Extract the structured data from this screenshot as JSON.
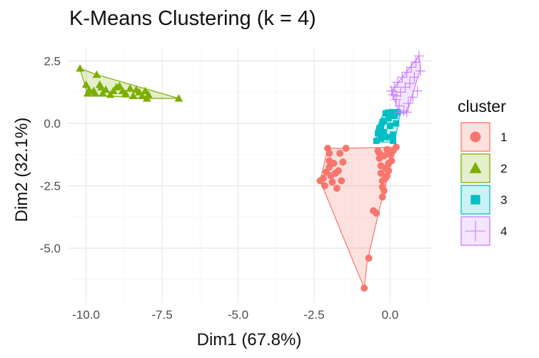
{
  "chart_data": {
    "type": "scatter",
    "title": "K-Means Clustering (k = 4)",
    "xlabel": "Dim1 (67.8%)",
    "ylabel": "Dim2 (32.1%)",
    "xlim": [
      -10.6,
      1.4
    ],
    "ylim": [
      -7.2,
      3.0
    ],
    "x_ticks": [
      -10.0,
      -7.5,
      -5.0,
      -2.5,
      0.0
    ],
    "x_tick_labels": [
      "-10.0",
      "-7.5",
      "-5.0",
      "-2.5",
      "0.0"
    ],
    "y_ticks": [
      2.5,
      0.0,
      -2.5,
      -5.0
    ],
    "y_tick_labels": [
      "2.5",
      "0.0",
      "-2.5",
      "-5.0"
    ],
    "grid": true,
    "legend": {
      "title": "cluster",
      "placement": "right",
      "entries": [
        "1",
        "2",
        "3",
        "4"
      ]
    },
    "series": [
      {
        "name": "1",
        "shape": "circle",
        "color": "#F8766D",
        "fill": "rgba(248,118,109,0.22)",
        "hull": [
          [
            -2.3,
            -2.3
          ],
          [
            -2.05,
            -1.0
          ],
          [
            -1.45,
            -1.0
          ],
          [
            0.2,
            -0.95
          ],
          [
            -0.25,
            -2.95
          ],
          [
            -0.75,
            -5.5
          ],
          [
            -0.85,
            -6.6
          ]
        ],
        "points": [
          [
            -2.3,
            -2.3
          ],
          [
            -2.2,
            -2.2
          ],
          [
            -2.15,
            -2.5
          ],
          [
            -2.1,
            -1.95
          ],
          [
            -2.05,
            -1.0
          ],
          [
            -2.0,
            -1.2
          ],
          [
            -2.0,
            -1.5
          ],
          [
            -2.0,
            -1.75
          ],
          [
            -1.95,
            -2.1
          ],
          [
            -1.9,
            -2.35
          ],
          [
            -1.85,
            -1.6
          ],
          [
            -1.8,
            -2.0
          ],
          [
            -1.75,
            -2.6
          ],
          [
            -1.7,
            -1.9
          ],
          [
            -1.65,
            -1.2
          ],
          [
            -1.6,
            -2.3
          ],
          [
            -1.55,
            -1.55
          ],
          [
            -1.45,
            -1.0
          ],
          [
            -0.85,
            -6.6
          ],
          [
            -0.7,
            -5.4
          ],
          [
            -0.55,
            -3.5
          ],
          [
            -0.45,
            -3.6
          ],
          [
            -0.4,
            -1.1
          ],
          [
            -0.35,
            -1.4
          ],
          [
            -0.3,
            -1.7
          ],
          [
            -0.3,
            -2.0
          ],
          [
            -0.25,
            -2.3
          ],
          [
            -0.25,
            -2.55
          ],
          [
            -0.25,
            -2.95
          ],
          [
            -0.2,
            -1.3
          ],
          [
            -0.15,
            -1.8
          ],
          [
            -0.1,
            -2.1
          ],
          [
            -0.1,
            -1.05
          ],
          [
            -0.05,
            -1.6
          ],
          [
            0.0,
            -1.25
          ],
          [
            0.05,
            -1.5
          ],
          [
            0.1,
            -1.1
          ],
          [
            0.2,
            -0.95
          ],
          [
            -0.35,
            -1.2
          ],
          [
            -0.2,
            -2.7
          ],
          [
            -0.15,
            -2.2
          ],
          [
            -0.05,
            -1.9
          ]
        ]
      },
      {
        "name": "2",
        "shape": "triangle",
        "color": "#7CAE00",
        "fill": "rgba(124,174,0,0.20)",
        "hull": [
          [
            -10.2,
            2.2
          ],
          [
            -9.65,
            1.95
          ],
          [
            -6.95,
            1.0
          ],
          [
            -8.0,
            1.0
          ],
          [
            -9.95,
            1.15
          ]
        ],
        "points": [
          [
            -10.2,
            2.2
          ],
          [
            -10.0,
            1.55
          ],
          [
            -9.95,
            1.2
          ],
          [
            -9.9,
            1.35
          ],
          [
            -9.75,
            1.3
          ],
          [
            -9.7,
            1.2
          ],
          [
            -9.65,
            1.95
          ],
          [
            -9.55,
            1.55
          ],
          [
            -9.5,
            1.45
          ],
          [
            -9.45,
            1.2
          ],
          [
            -9.35,
            1.35
          ],
          [
            -9.2,
            1.15
          ],
          [
            -9.1,
            1.3
          ],
          [
            -9.0,
            1.45
          ],
          [
            -8.9,
            1.5
          ],
          [
            -8.8,
            1.3
          ],
          [
            -8.7,
            1.2
          ],
          [
            -8.55,
            1.4
          ],
          [
            -8.45,
            1.1
          ],
          [
            -8.35,
            1.35
          ],
          [
            -8.25,
            1.25
          ],
          [
            -8.15,
            1.1
          ],
          [
            -8.05,
            1.3
          ],
          [
            -8.0,
            1.0
          ],
          [
            -7.95,
            1.15
          ],
          [
            -6.95,
            1.0
          ]
        ]
      },
      {
        "name": "3",
        "shape": "square",
        "color": "#00BFC4",
        "fill": "rgba(0,191,196,0.20)",
        "hull": [
          [
            -0.15,
            0.55
          ],
          [
            0.35,
            0.5
          ],
          [
            0.25,
            -0.1
          ],
          [
            0.15,
            -0.75
          ],
          [
            -0.45,
            -0.75
          ],
          [
            -0.45,
            -0.2
          ]
        ],
        "points": [
          [
            -0.45,
            -0.7
          ],
          [
            -0.4,
            -0.4
          ],
          [
            -0.35,
            -0.2
          ],
          [
            -0.3,
            -0.6
          ],
          [
            -0.25,
            0.05
          ],
          [
            -0.2,
            -0.35
          ],
          [
            -0.15,
            0.4
          ],
          [
            -0.1,
            -0.55
          ],
          [
            -0.05,
            0.2
          ],
          [
            0.0,
            -0.1
          ],
          [
            0.05,
            0.45
          ],
          [
            0.1,
            -0.45
          ],
          [
            0.15,
            0.3
          ],
          [
            0.2,
            0.0
          ],
          [
            0.25,
            0.45
          ],
          [
            0.1,
            -0.7
          ],
          [
            -0.2,
            0.1
          ],
          [
            -0.3,
            -0.15
          ]
        ]
      },
      {
        "name": "4",
        "shape": "plus",
        "color": "#C77CFF",
        "fill": "rgba(199,124,255,0.20)",
        "hull": [
          [
            0.95,
            2.7
          ],
          [
            1.0,
            2.2
          ],
          [
            0.55,
            0.4
          ],
          [
            0.3,
            0.4
          ],
          [
            0.05,
            1.3
          ]
        ],
        "points": [
          [
            0.05,
            1.3
          ],
          [
            0.1,
            1.15
          ],
          [
            0.15,
            1.45
          ],
          [
            0.2,
            0.95
          ],
          [
            0.25,
            1.65
          ],
          [
            0.3,
            0.7
          ],
          [
            0.35,
            1.25
          ],
          [
            0.4,
            1.85
          ],
          [
            0.45,
            0.5
          ],
          [
            0.5,
            1.45
          ],
          [
            0.55,
            2.05
          ],
          [
            0.6,
            0.8
          ],
          [
            0.65,
            1.6
          ],
          [
            0.7,
            2.25
          ],
          [
            0.75,
            1.05
          ],
          [
            0.8,
            1.85
          ],
          [
            0.85,
            2.45
          ],
          [
            0.9,
            1.3
          ],
          [
            0.95,
            2.7
          ],
          [
            1.0,
            2.1
          ],
          [
            0.3,
            0.45
          ],
          [
            0.55,
            0.45
          ],
          [
            0.2,
            1.1
          ]
        ]
      }
    ]
  }
}
